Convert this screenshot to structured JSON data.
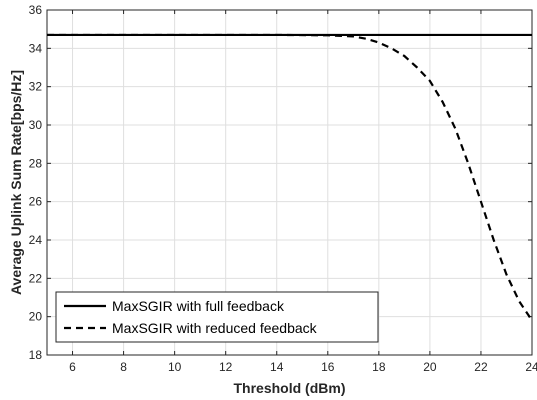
{
  "chart_data": {
    "type": "line",
    "title": "",
    "xlabel": "Threshold (dBm)",
    "ylabel": "Average Uplink Sum Rate[bps/Hz]",
    "xlim": [
      5,
      24
    ],
    "ylim": [
      18,
      36
    ],
    "xticks": [
      6,
      8,
      10,
      12,
      14,
      16,
      18,
      20,
      22,
      24
    ],
    "yticks": [
      18,
      20,
      22,
      24,
      26,
      28,
      30,
      32,
      34,
      36
    ],
    "grid": true,
    "legend_position": "bottom-left",
    "series": [
      {
        "name": "MaxSGIR with full feedback",
        "style": "solid",
        "color": "#000000",
        "x": [
          5,
          24
        ],
        "y": [
          34.7,
          34.7
        ]
      },
      {
        "name": "MaxSGIR with reduced feedback",
        "style": "dashed",
        "color": "#000000",
        "x": [
          5,
          14,
          16,
          17,
          17.5,
          18,
          18.5,
          19,
          19.5,
          20,
          20.5,
          21,
          21.5,
          22,
          22.5,
          23,
          23.5,
          24
        ],
        "y": [
          34.7,
          34.7,
          34.68,
          34.62,
          34.5,
          34.3,
          34.0,
          33.6,
          33.0,
          32.3,
          31.2,
          29.8,
          28.0,
          26.0,
          24.0,
          22.2,
          20.8,
          19.8
        ]
      }
    ]
  }
}
